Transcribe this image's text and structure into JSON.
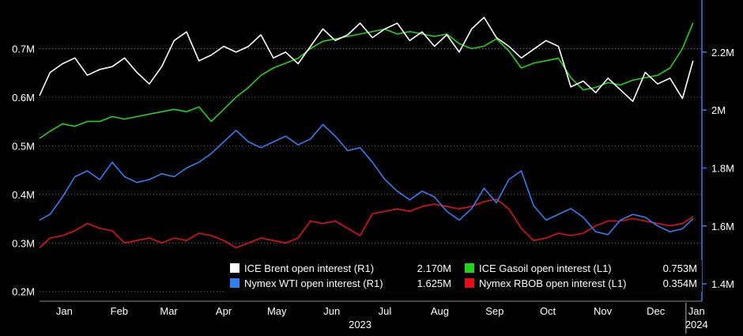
{
  "chart_data": {
    "type": "line",
    "title": "",
    "axes": {
      "left": {
        "min": 0.18,
        "max": 0.8,
        "ticks": [
          0.2,
          0.3,
          0.4,
          0.5,
          0.6,
          0.7
        ],
        "tick_labels": [
          "0.2M",
          "0.3M",
          "0.4M",
          "0.5M",
          "0.6M",
          "0.7M"
        ]
      },
      "right": {
        "min": 1.34,
        "max": 2.38,
        "ticks": [
          1.4,
          1.6,
          1.8,
          2.0,
          2.2
        ],
        "tick_labels": [
          "1.4M",
          "1.6M",
          "1.8M",
          "2M",
          "2.2M"
        ]
      },
      "x": {
        "start": "2023-01-01",
        "end": "2024-01-10",
        "months": [
          {
            "label": "Jan",
            "date": "2023-01-15"
          },
          {
            "label": "Feb",
            "date": "2023-02-15"
          },
          {
            "label": "Mar",
            "date": "2023-03-15"
          },
          {
            "label": "Apr",
            "date": "2023-04-15"
          },
          {
            "label": "May",
            "date": "2023-05-15"
          },
          {
            "label": "Jun",
            "date": "2023-06-15"
          },
          {
            "label": "Jul",
            "date": "2023-07-15"
          },
          {
            "label": "Aug",
            "date": "2023-08-15"
          },
          {
            "label": "Sep",
            "date": "2023-09-15"
          },
          {
            "label": "Oct",
            "date": "2023-10-15"
          },
          {
            "label": "Nov",
            "date": "2023-11-15"
          },
          {
            "label": "Dec",
            "date": "2023-12-15"
          },
          {
            "label": "Jan",
            "date": "2024-01-07"
          }
        ],
        "year_labels": [
          {
            "label": "2023",
            "date": "2023-07-01"
          },
          {
            "label": "2024",
            "date": "2024-01-07"
          }
        ],
        "year_divider": "2024-01-01"
      },
      "grid": true
    },
    "legend": {
      "placement": "bottom-right",
      "entries": [
        {
          "series": "brent",
          "label": "ICE Brent open interest (R1)",
          "value": "2.170M"
        },
        {
          "series": "gasoil",
          "label": "ICE Gasoil open interest (L1)",
          "value": "0.753M"
        },
        {
          "series": "wti",
          "label": "Nymex WTI open interest (R1)",
          "value": "1.625M"
        },
        {
          "series": "rbob",
          "label": "Nymex RBOB open interest (L1)",
          "value": "0.354M"
        }
      ]
    },
    "series": [
      {
        "key": "brent",
        "name": "ICE Brent open interest (R1)",
        "axis": "right",
        "color": "#ffffff",
        "points": [
          [
            "2023-01-01",
            2.05
          ],
          [
            "2023-01-07",
            2.13
          ],
          [
            "2023-01-14",
            2.16
          ],
          [
            "2023-01-21",
            2.18
          ],
          [
            "2023-01-28",
            2.12
          ],
          [
            "2023-02-04",
            2.14
          ],
          [
            "2023-02-11",
            2.15
          ],
          [
            "2023-02-18",
            2.18
          ],
          [
            "2023-02-25",
            2.13
          ],
          [
            "2023-03-04",
            2.09
          ],
          [
            "2023-03-11",
            2.15
          ],
          [
            "2023-03-18",
            2.24
          ],
          [
            "2023-03-25",
            2.27
          ],
          [
            "2023-04-01",
            2.17
          ],
          [
            "2023-04-08",
            2.19
          ],
          [
            "2023-04-15",
            2.22
          ],
          [
            "2023-04-22",
            2.2
          ],
          [
            "2023-04-29",
            2.22
          ],
          [
            "2023-05-06",
            2.26
          ],
          [
            "2023-05-13",
            2.18
          ],
          [
            "2023-05-20",
            2.2
          ],
          [
            "2023-05-27",
            2.16
          ],
          [
            "2023-06-03",
            2.22
          ],
          [
            "2023-06-10",
            2.28
          ],
          [
            "2023-06-17",
            2.24
          ],
          [
            "2023-06-24",
            2.26
          ],
          [
            "2023-07-01",
            2.3
          ],
          [
            "2023-07-08",
            2.25
          ],
          [
            "2023-07-15",
            2.28
          ],
          [
            "2023-07-22",
            2.3
          ],
          [
            "2023-07-29",
            2.24
          ],
          [
            "2023-08-05",
            2.27
          ],
          [
            "2023-08-12",
            2.22
          ],
          [
            "2023-08-19",
            2.26
          ],
          [
            "2023-08-26",
            2.2
          ],
          [
            "2023-09-02",
            2.28
          ],
          [
            "2023-09-09",
            2.32
          ],
          [
            "2023-09-16",
            2.25
          ],
          [
            "2023-09-23",
            2.22
          ],
          [
            "2023-09-30",
            2.18
          ],
          [
            "2023-10-07",
            2.21
          ],
          [
            "2023-10-14",
            2.24
          ],
          [
            "2023-10-21",
            2.22
          ],
          [
            "2023-10-28",
            2.08
          ],
          [
            "2023-11-04",
            2.1
          ],
          [
            "2023-11-11",
            2.06
          ],
          [
            "2023-11-18",
            2.11
          ],
          [
            "2023-11-25",
            2.07
          ],
          [
            "2023-12-02",
            2.03
          ],
          [
            "2023-12-09",
            2.13
          ],
          [
            "2023-12-16",
            2.09
          ],
          [
            "2023-12-23",
            2.11
          ],
          [
            "2023-12-30",
            2.04
          ],
          [
            "2024-01-05",
            2.17
          ]
        ]
      },
      {
        "key": "gasoil",
        "name": "ICE Gasoil open interest (L1)",
        "axis": "left",
        "color": "#22d21c",
        "points": [
          [
            "2023-01-01",
            0.515
          ],
          [
            "2023-01-07",
            0.53
          ],
          [
            "2023-01-14",
            0.545
          ],
          [
            "2023-01-21",
            0.54
          ],
          [
            "2023-01-28",
            0.55
          ],
          [
            "2023-02-04",
            0.55
          ],
          [
            "2023-02-11",
            0.56
          ],
          [
            "2023-02-18",
            0.555
          ],
          [
            "2023-02-25",
            0.56
          ],
          [
            "2023-03-04",
            0.565
          ],
          [
            "2023-03-11",
            0.57
          ],
          [
            "2023-03-18",
            0.575
          ],
          [
            "2023-03-25",
            0.57
          ],
          [
            "2023-04-01",
            0.58
          ],
          [
            "2023-04-08",
            0.55
          ],
          [
            "2023-04-15",
            0.575
          ],
          [
            "2023-04-22",
            0.6
          ],
          [
            "2023-04-29",
            0.62
          ],
          [
            "2023-05-06",
            0.645
          ],
          [
            "2023-05-13",
            0.66
          ],
          [
            "2023-05-20",
            0.67
          ],
          [
            "2023-05-27",
            0.68
          ],
          [
            "2023-06-03",
            0.7
          ],
          [
            "2023-06-10",
            0.715
          ],
          [
            "2023-06-17",
            0.72
          ],
          [
            "2023-06-24",
            0.725
          ],
          [
            "2023-07-01",
            0.73
          ],
          [
            "2023-07-08",
            0.735
          ],
          [
            "2023-07-15",
            0.74
          ],
          [
            "2023-07-22",
            0.73
          ],
          [
            "2023-07-29",
            0.735
          ],
          [
            "2023-08-05",
            0.73
          ],
          [
            "2023-08-12",
            0.725
          ],
          [
            "2023-08-19",
            0.73
          ],
          [
            "2023-08-26",
            0.71
          ],
          [
            "2023-09-02",
            0.7
          ],
          [
            "2023-09-09",
            0.705
          ],
          [
            "2023-09-16",
            0.72
          ],
          [
            "2023-09-23",
            0.695
          ],
          [
            "2023-09-30",
            0.66
          ],
          [
            "2023-10-07",
            0.67
          ],
          [
            "2023-10-14",
            0.675
          ],
          [
            "2023-10-21",
            0.68
          ],
          [
            "2023-10-28",
            0.64
          ],
          [
            "2023-11-04",
            0.615
          ],
          [
            "2023-11-11",
            0.62
          ],
          [
            "2023-11-18",
            0.63
          ],
          [
            "2023-11-25",
            0.625
          ],
          [
            "2023-12-02",
            0.635
          ],
          [
            "2023-12-09",
            0.64
          ],
          [
            "2023-12-16",
            0.645
          ],
          [
            "2023-12-23",
            0.66
          ],
          [
            "2023-12-30",
            0.7
          ],
          [
            "2024-01-05",
            0.753
          ]
        ]
      },
      {
        "key": "wti",
        "name": "Nymex WTI open interest (R1)",
        "axis": "right",
        "color": "#2f7ff2",
        "points": [
          [
            "2023-01-01",
            1.62
          ],
          [
            "2023-01-07",
            1.64
          ],
          [
            "2023-01-14",
            1.7
          ],
          [
            "2023-01-21",
            1.77
          ],
          [
            "2023-01-28",
            1.79
          ],
          [
            "2023-02-04",
            1.76
          ],
          [
            "2023-02-11",
            1.82
          ],
          [
            "2023-02-18",
            1.77
          ],
          [
            "2023-02-25",
            1.75
          ],
          [
            "2023-03-04",
            1.76
          ],
          [
            "2023-03-11",
            1.78
          ],
          [
            "2023-03-18",
            1.77
          ],
          [
            "2023-03-25",
            1.8
          ],
          [
            "2023-04-01",
            1.82
          ],
          [
            "2023-04-08",
            1.85
          ],
          [
            "2023-04-15",
            1.89
          ],
          [
            "2023-04-22",
            1.93
          ],
          [
            "2023-04-29",
            1.89
          ],
          [
            "2023-05-06",
            1.87
          ],
          [
            "2023-05-13",
            1.89
          ],
          [
            "2023-05-20",
            1.91
          ],
          [
            "2023-05-27",
            1.88
          ],
          [
            "2023-06-03",
            1.9
          ],
          [
            "2023-06-10",
            1.95
          ],
          [
            "2023-06-17",
            1.91
          ],
          [
            "2023-06-24",
            1.86
          ],
          [
            "2023-07-01",
            1.87
          ],
          [
            "2023-07-08",
            1.82
          ],
          [
            "2023-07-15",
            1.76
          ],
          [
            "2023-07-22",
            1.72
          ],
          [
            "2023-07-29",
            1.69
          ],
          [
            "2023-08-05",
            1.72
          ],
          [
            "2023-08-12",
            1.7
          ],
          [
            "2023-08-19",
            1.65
          ],
          [
            "2023-08-26",
            1.62
          ],
          [
            "2023-09-02",
            1.66
          ],
          [
            "2023-09-09",
            1.73
          ],
          [
            "2023-09-16",
            1.68
          ],
          [
            "2023-09-23",
            1.76
          ],
          [
            "2023-09-30",
            1.79
          ],
          [
            "2023-10-07",
            1.67
          ],
          [
            "2023-10-14",
            1.62
          ],
          [
            "2023-10-21",
            1.64
          ],
          [
            "2023-10-28",
            1.66
          ],
          [
            "2023-11-04",
            1.63
          ],
          [
            "2023-11-11",
            1.58
          ],
          [
            "2023-11-18",
            1.57
          ],
          [
            "2023-11-25",
            1.62
          ],
          [
            "2023-12-02",
            1.64
          ],
          [
            "2023-12-09",
            1.63
          ],
          [
            "2023-12-16",
            1.6
          ],
          [
            "2023-12-23",
            1.58
          ],
          [
            "2023-12-30",
            1.59
          ],
          [
            "2024-01-05",
            1.625
          ]
        ]
      },
      {
        "key": "rbob",
        "name": "Nymex RBOB open interest (L1)",
        "axis": "left",
        "color": "#e0101a",
        "points": [
          [
            "2023-01-01",
            0.29
          ],
          [
            "2023-01-07",
            0.31
          ],
          [
            "2023-01-14",
            0.315
          ],
          [
            "2023-01-21",
            0.325
          ],
          [
            "2023-01-28",
            0.34
          ],
          [
            "2023-02-04",
            0.33
          ],
          [
            "2023-02-11",
            0.325
          ],
          [
            "2023-02-18",
            0.3
          ],
          [
            "2023-02-25",
            0.305
          ],
          [
            "2023-03-04",
            0.31
          ],
          [
            "2023-03-11",
            0.3
          ],
          [
            "2023-03-18",
            0.31
          ],
          [
            "2023-03-25",
            0.305
          ],
          [
            "2023-04-01",
            0.32
          ],
          [
            "2023-04-08",
            0.315
          ],
          [
            "2023-04-15",
            0.305
          ],
          [
            "2023-04-22",
            0.29
          ],
          [
            "2023-04-29",
            0.3
          ],
          [
            "2023-05-06",
            0.31
          ],
          [
            "2023-05-13",
            0.305
          ],
          [
            "2023-05-20",
            0.3
          ],
          [
            "2023-05-27",
            0.31
          ],
          [
            "2023-06-03",
            0.345
          ],
          [
            "2023-06-10",
            0.34
          ],
          [
            "2023-06-17",
            0.345
          ],
          [
            "2023-06-24",
            0.33
          ],
          [
            "2023-07-01",
            0.315
          ],
          [
            "2023-07-08",
            0.36
          ],
          [
            "2023-07-15",
            0.365
          ],
          [
            "2023-07-22",
            0.37
          ],
          [
            "2023-07-29",
            0.365
          ],
          [
            "2023-08-05",
            0.375
          ],
          [
            "2023-08-12",
            0.38
          ],
          [
            "2023-08-19",
            0.375
          ],
          [
            "2023-08-26",
            0.37
          ],
          [
            "2023-09-02",
            0.375
          ],
          [
            "2023-09-09",
            0.385
          ],
          [
            "2023-09-16",
            0.39
          ],
          [
            "2023-09-23",
            0.37
          ],
          [
            "2023-09-30",
            0.33
          ],
          [
            "2023-10-07",
            0.305
          ],
          [
            "2023-10-14",
            0.31
          ],
          [
            "2023-10-21",
            0.32
          ],
          [
            "2023-10-28",
            0.315
          ],
          [
            "2023-11-04",
            0.32
          ],
          [
            "2023-11-11",
            0.335
          ],
          [
            "2023-11-18",
            0.345
          ],
          [
            "2023-11-25",
            0.345
          ],
          [
            "2023-12-02",
            0.35
          ],
          [
            "2023-12-09",
            0.345
          ],
          [
            "2023-12-16",
            0.34
          ],
          [
            "2023-12-23",
            0.335
          ],
          [
            "2023-12-30",
            0.34
          ],
          [
            "2024-01-05",
            0.354
          ]
        ]
      }
    ]
  }
}
